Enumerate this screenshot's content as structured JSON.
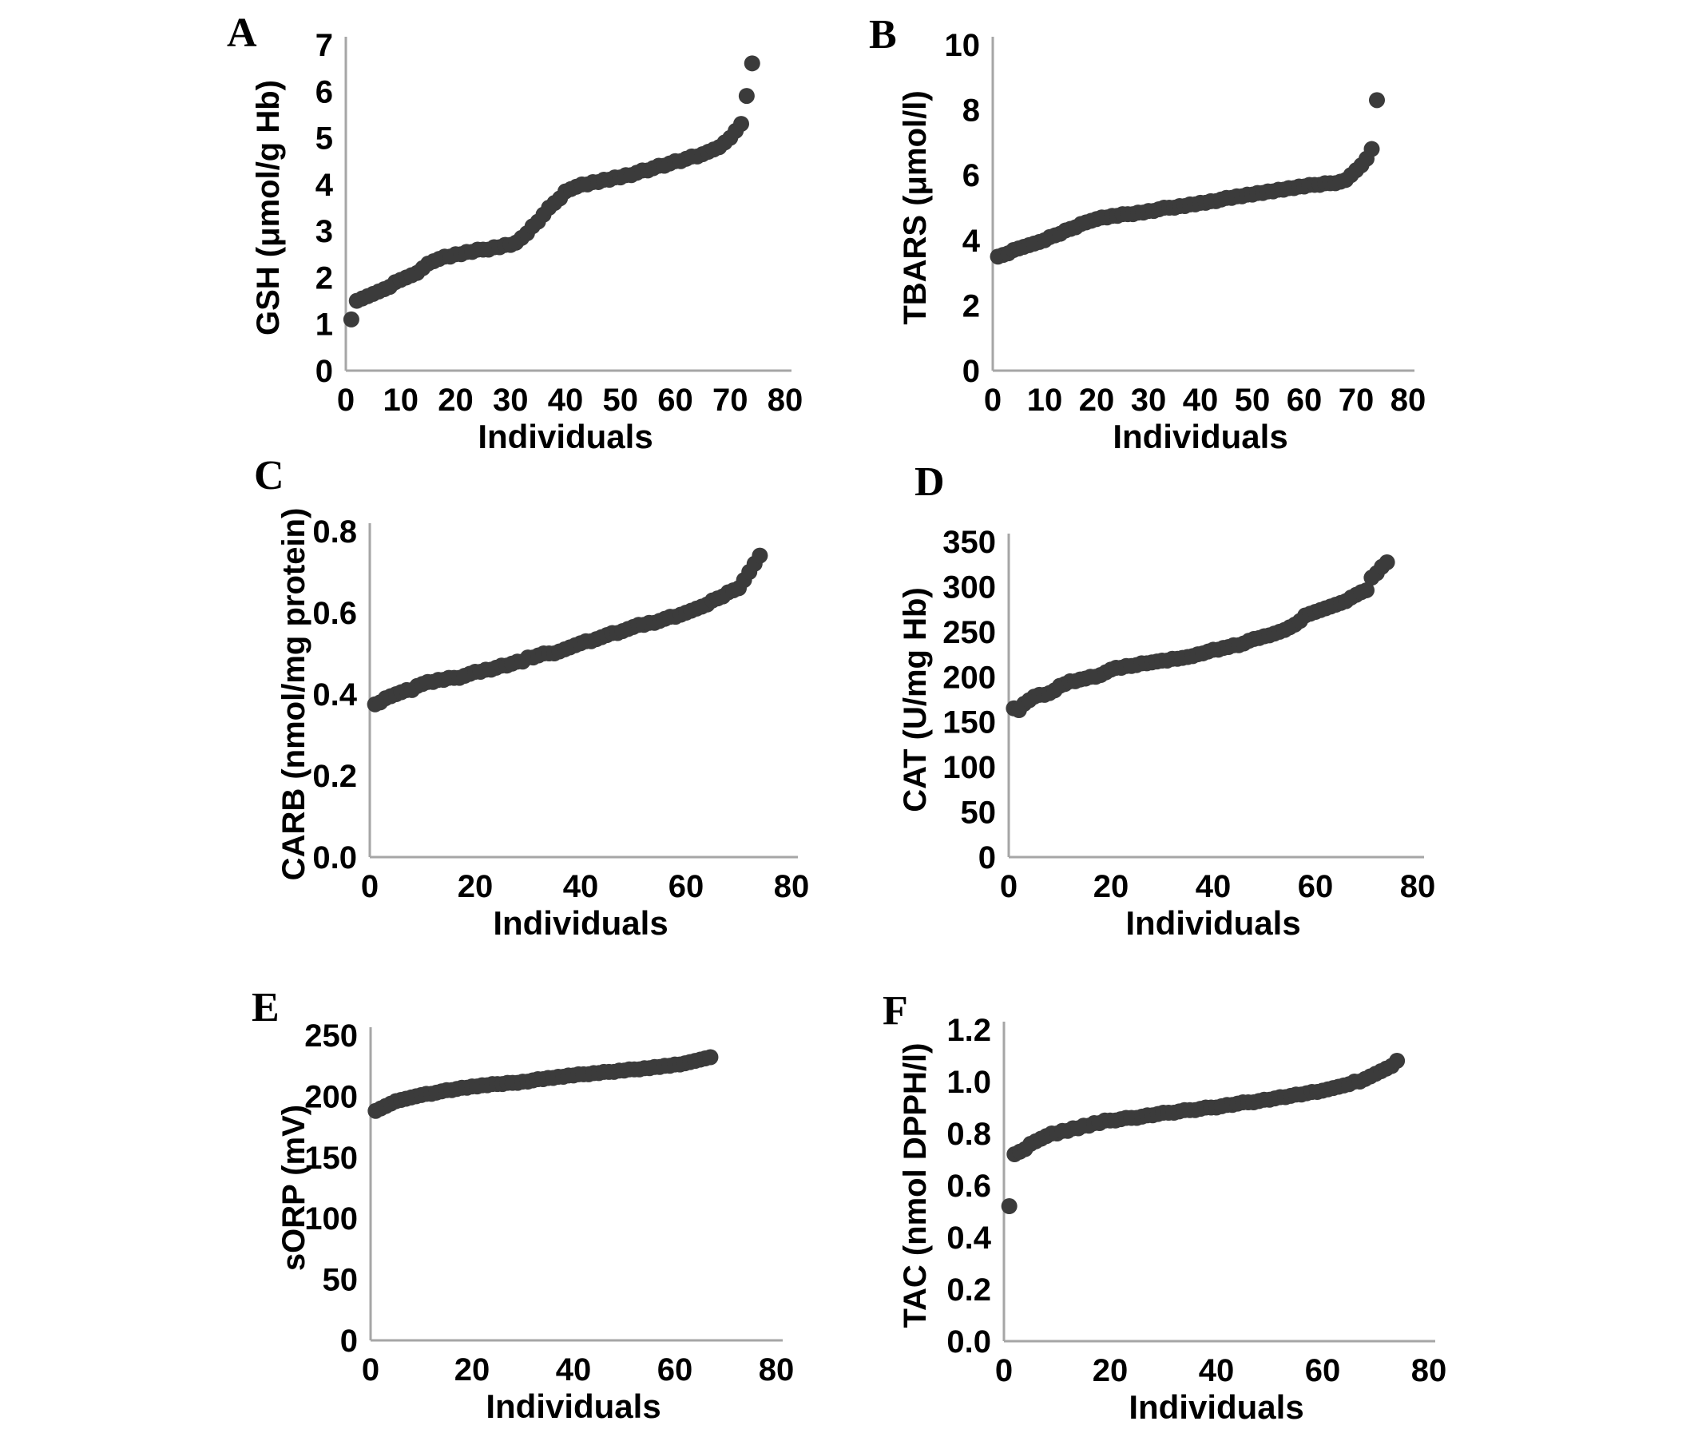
{
  "figure": {
    "background": "#ffffff",
    "dot_color": "#3b3b3b",
    "axis_color": "#a6a6a6",
    "text_color": "#000000"
  },
  "chart_data": [
    {
      "panel_label": "A",
      "type": "scatter",
      "ylabel": "GSH (μmol/g Hb)",
      "xlabel": "Individuals",
      "xlim": [
        0,
        80
      ],
      "ylim": [
        0,
        7
      ],
      "xticks": [
        "0",
        "10",
        "20",
        "30",
        "40",
        "50",
        "60",
        "70",
        "80"
      ],
      "yticks": [
        "0",
        "1",
        "2",
        "3",
        "4",
        "5",
        "6",
        "7"
      ],
      "grid": false,
      "legend": "none",
      "x_meaning": "individual rank (values sorted ascending)",
      "values": [
        1.1,
        1.5,
        1.55,
        1.6,
        1.65,
        1.7,
        1.75,
        1.8,
        1.9,
        1.95,
        2.0,
        2.05,
        2.1,
        2.2,
        2.3,
        2.35,
        2.4,
        2.45,
        2.45,
        2.5,
        2.5,
        2.55,
        2.55,
        2.6,
        2.6,
        2.6,
        2.65,
        2.65,
        2.7,
        2.7,
        2.75,
        2.85,
        2.95,
        3.1,
        3.2,
        3.35,
        3.5,
        3.6,
        3.7,
        3.85,
        3.9,
        3.95,
        4.0,
        4.0,
        4.05,
        4.05,
        4.1,
        4.1,
        4.15,
        4.15,
        4.2,
        4.2,
        4.25,
        4.3,
        4.3,
        4.35,
        4.4,
        4.4,
        4.45,
        4.5,
        4.5,
        4.55,
        4.6,
        4.6,
        4.65,
        4.7,
        4.75,
        4.8,
        4.9,
        5.0,
        5.15,
        5.3,
        5.9,
        6.6
      ]
    },
    {
      "panel_label": "B",
      "type": "scatter",
      "ylabel": "TBARS (μmol/l)",
      "xlabel": "Individuals",
      "xlim": [
        0,
        80
      ],
      "ylim": [
        0,
        10
      ],
      "xticks": [
        "0",
        "10",
        "20",
        "30",
        "40",
        "50",
        "60",
        "70",
        "80"
      ],
      "yticks": [
        "0",
        "2",
        "4",
        "6",
        "8",
        "10"
      ],
      "grid": false,
      "legend": "none",
      "x_meaning": "individual rank (values sorted ascending)",
      "values": [
        3.5,
        3.55,
        3.6,
        3.7,
        3.75,
        3.8,
        3.85,
        3.9,
        3.95,
        4.0,
        4.1,
        4.15,
        4.2,
        4.3,
        4.35,
        4.4,
        4.5,
        4.55,
        4.6,
        4.65,
        4.7,
        4.7,
        4.75,
        4.75,
        4.8,
        4.8,
        4.8,
        4.85,
        4.85,
        4.9,
        4.9,
        4.95,
        5.0,
        5.0,
        5.0,
        5.05,
        5.05,
        5.1,
        5.1,
        5.15,
        5.15,
        5.2,
        5.2,
        5.25,
        5.3,
        5.3,
        5.35,
        5.35,
        5.4,
        5.4,
        5.45,
        5.45,
        5.5,
        5.5,
        5.55,
        5.55,
        5.6,
        5.6,
        5.65,
        5.65,
        5.7,
        5.7,
        5.7,
        5.75,
        5.75,
        5.75,
        5.8,
        5.85,
        6.0,
        6.15,
        6.3,
        6.5,
        6.8,
        8.3
      ]
    },
    {
      "panel_label": "C",
      "type": "scatter",
      "ylabel": "CARB (nmol/mg protein)",
      "xlabel": "Individuals",
      "xlim": [
        0,
        80
      ],
      "ylim": [
        0,
        0.8
      ],
      "xticks": [
        "0",
        "20",
        "40",
        "60",
        "80"
      ],
      "yticks": [
        "0.0",
        "0.2",
        "0.4",
        "0.6",
        "0.8"
      ],
      "grid": false,
      "legend": "none",
      "x_meaning": "individual rank (values sorted ascending)",
      "values": [
        0.375,
        0.38,
        0.39,
        0.395,
        0.4,
        0.405,
        0.41,
        0.41,
        0.42,
        0.425,
        0.43,
        0.43,
        0.435,
        0.435,
        0.44,
        0.44,
        0.44,
        0.445,
        0.45,
        0.455,
        0.455,
        0.46,
        0.46,
        0.465,
        0.47,
        0.47,
        0.475,
        0.48,
        0.48,
        0.49,
        0.49,
        0.495,
        0.5,
        0.5,
        0.5,
        0.505,
        0.51,
        0.515,
        0.52,
        0.525,
        0.53,
        0.53,
        0.535,
        0.54,
        0.545,
        0.55,
        0.55,
        0.555,
        0.56,
        0.565,
        0.57,
        0.57,
        0.575,
        0.575,
        0.58,
        0.585,
        0.59,
        0.59,
        0.595,
        0.6,
        0.605,
        0.61,
        0.615,
        0.62,
        0.63,
        0.635,
        0.64,
        0.65,
        0.655,
        0.66,
        0.68,
        0.7,
        0.72,
        0.74
      ]
    },
    {
      "panel_label": "D",
      "type": "scatter",
      "ylabel": "CAT (U/mg Hb)",
      "xlabel": "Individuals",
      "xlim": [
        0,
        80
      ],
      "ylim": [
        0,
        350
      ],
      "xticks": [
        "0",
        "20",
        "40",
        "60",
        "80"
      ],
      "yticks": [
        "0",
        "50",
        "100",
        "150",
        "200",
        "250",
        "300",
        "350"
      ],
      "grid": false,
      "legend": "none",
      "x_meaning": "individual rank (values sorted ascending)",
      "values": [
        165,
        163,
        170,
        174,
        178,
        180,
        180,
        182,
        185,
        190,
        192,
        195,
        195,
        197,
        198,
        200,
        200,
        202,
        205,
        208,
        210,
        210,
        212,
        212,
        213,
        215,
        215,
        216,
        217,
        218,
        218,
        220,
        220,
        221,
        222,
        223,
        225,
        226,
        228,
        230,
        230,
        232,
        233,
        235,
        235,
        237,
        240,
        242,
        243,
        245,
        246,
        248,
        250,
        252,
        255,
        258,
        262,
        268,
        270,
        272,
        274,
        276,
        278,
        280,
        282,
        284,
        288,
        291,
        294,
        296,
        310,
        315,
        322,
        327
      ]
    },
    {
      "panel_label": "E",
      "type": "scatter",
      "ylabel": "sORP (mV)",
      "xlabel": "Individuals",
      "xlim": [
        0,
        80
      ],
      "ylim": [
        0,
        250
      ],
      "xticks": [
        "0",
        "20",
        "40",
        "60",
        "80"
      ],
      "yticks": [
        "0",
        "50",
        "100",
        "150",
        "200",
        "250"
      ],
      "grid": false,
      "legend": "none",
      "x_meaning": "individual rank (values sorted ascending)",
      "values": [
        188,
        190,
        192,
        194,
        196,
        197,
        198,
        199,
        200,
        201,
        202,
        202,
        203,
        204,
        205,
        205,
        206,
        207,
        207,
        208,
        208,
        209,
        209,
        210,
        210,
        210,
        211,
        211,
        211,
        212,
        212,
        213,
        214,
        214,
        215,
        215,
        216,
        216,
        217,
        217,
        218,
        218,
        218,
        219,
        219,
        220,
        220,
        220,
        221,
        221,
        222,
        222,
        222,
        223,
        223,
        224,
        224,
        225,
        225,
        226,
        226,
        227,
        228,
        229,
        230,
        231,
        232
      ]
    },
    {
      "panel_label": "F",
      "type": "scatter",
      "ylabel": "TAC (nmol DPPH/l)",
      "xlabel": "Individuals",
      "xlim": [
        0,
        80
      ],
      "ylim": [
        0,
        1.2
      ],
      "xticks": [
        "0",
        "20",
        "40",
        "60",
        "80"
      ],
      "yticks": [
        "0.0",
        "0.2",
        "0.4",
        "0.6",
        "0.8",
        "1.0",
        "1.2"
      ],
      "grid": false,
      "legend": "none",
      "x_meaning": "individual rank (values sorted ascending)",
      "values": [
        0.52,
        0.72,
        0.73,
        0.74,
        0.76,
        0.77,
        0.78,
        0.79,
        0.8,
        0.8,
        0.81,
        0.81,
        0.82,
        0.82,
        0.83,
        0.83,
        0.84,
        0.84,
        0.85,
        0.85,
        0.85,
        0.855,
        0.86,
        0.86,
        0.86,
        0.865,
        0.87,
        0.87,
        0.875,
        0.88,
        0.88,
        0.88,
        0.885,
        0.89,
        0.89,
        0.89,
        0.895,
        0.9,
        0.9,
        0.9,
        0.905,
        0.91,
        0.91,
        0.915,
        0.92,
        0.92,
        0.92,
        0.925,
        0.93,
        0.93,
        0.935,
        0.94,
        0.94,
        0.945,
        0.95,
        0.95,
        0.955,
        0.96,
        0.96,
        0.965,
        0.97,
        0.975,
        0.98,
        0.985,
        0.99,
        1.0,
        1.0,
        1.01,
        1.02,
        1.03,
        1.04,
        1.05,
        1.06,
        1.08
      ]
    }
  ]
}
